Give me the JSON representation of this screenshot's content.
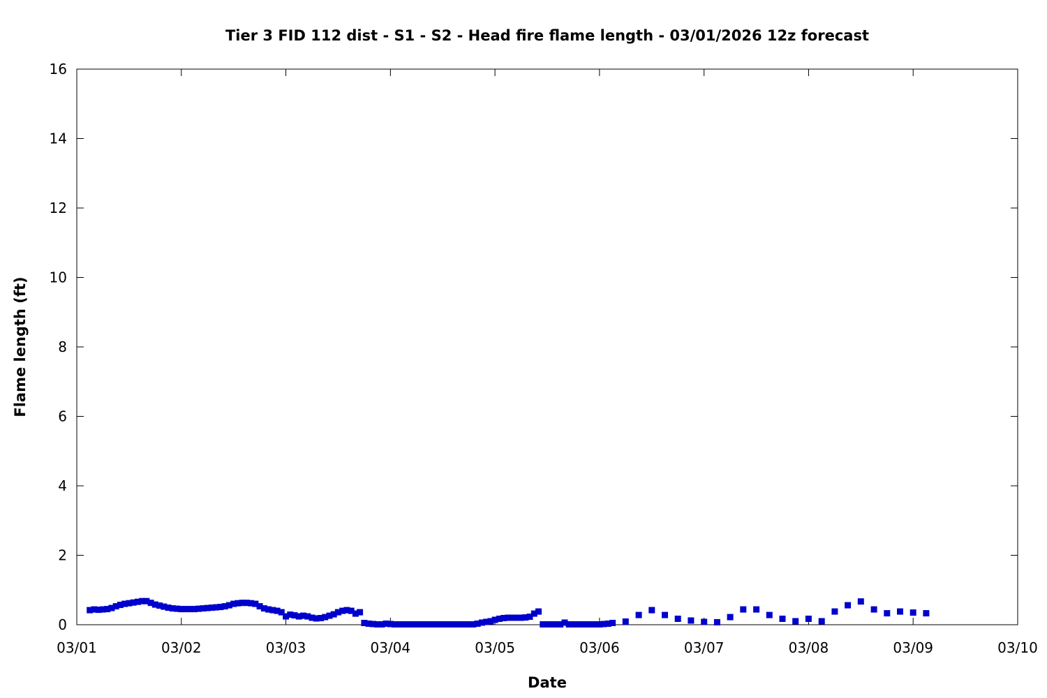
{
  "chart_data": {
    "type": "scatter",
    "title": "Tier 3 FID 112 dist - S1 - S2 - Head fire flame length - 03/01/2026 12z forecast",
    "xlabel": "Date",
    "ylabel": "Flame length (ft)",
    "xlim": [
      "2026-03-01T00:00",
      "2026-03-10T00:00"
    ],
    "ylim": [
      0,
      16
    ],
    "x_ticks": [
      "03/01",
      "03/02",
      "03/03",
      "03/04",
      "03/05",
      "03/06",
      "03/07",
      "03/08",
      "03/09",
      "03/10"
    ],
    "y_ticks": [
      "0",
      "2",
      "4",
      "6",
      "8",
      "10",
      "12",
      "14",
      "16"
    ],
    "grid": false,
    "legend": "none",
    "marker": "square",
    "color": "#0000cc",
    "series": [
      {
        "points": [
          [
            "2026-03-01T03:00",
            0.42
          ],
          [
            "2026-03-01T04:00",
            0.44
          ],
          [
            "2026-03-01T05:00",
            0.43
          ],
          [
            "2026-03-01T06:00",
            0.44
          ],
          [
            "2026-03-01T07:00",
            0.45
          ],
          [
            "2026-03-01T08:00",
            0.48
          ],
          [
            "2026-03-01T09:00",
            0.53
          ],
          [
            "2026-03-01T10:00",
            0.57
          ],
          [
            "2026-03-01T11:00",
            0.6
          ],
          [
            "2026-03-01T12:00",
            0.62
          ],
          [
            "2026-03-01T13:00",
            0.64
          ],
          [
            "2026-03-01T14:00",
            0.66
          ],
          [
            "2026-03-01T15:00",
            0.68
          ],
          [
            "2026-03-01T16:00",
            0.68
          ],
          [
            "2026-03-01T17:00",
            0.63
          ],
          [
            "2026-03-01T18:00",
            0.58
          ],
          [
            "2026-03-01T19:00",
            0.55
          ],
          [
            "2026-03-01T20:00",
            0.52
          ],
          [
            "2026-03-01T21:00",
            0.49
          ],
          [
            "2026-03-01T22:00",
            0.47
          ],
          [
            "2026-03-01T23:00",
            0.46
          ],
          [
            "2026-03-02T00:00",
            0.45
          ],
          [
            "2026-03-02T01:00",
            0.45
          ],
          [
            "2026-03-02T02:00",
            0.45
          ],
          [
            "2026-03-02T03:00",
            0.45
          ],
          [
            "2026-03-02T04:00",
            0.46
          ],
          [
            "2026-03-02T05:00",
            0.47
          ],
          [
            "2026-03-02T06:00",
            0.48
          ],
          [
            "2026-03-02T07:00",
            0.49
          ],
          [
            "2026-03-02T08:00",
            0.5
          ],
          [
            "2026-03-02T09:00",
            0.51
          ],
          [
            "2026-03-02T10:00",
            0.53
          ],
          [
            "2026-03-02T11:00",
            0.56
          ],
          [
            "2026-03-02T12:00",
            0.6
          ],
          [
            "2026-03-02T13:00",
            0.62
          ],
          [
            "2026-03-02T14:00",
            0.63
          ],
          [
            "2026-03-02T15:00",
            0.63
          ],
          [
            "2026-03-02T16:00",
            0.62
          ],
          [
            "2026-03-02T17:00",
            0.6
          ],
          [
            "2026-03-02T18:00",
            0.53
          ],
          [
            "2026-03-02T19:00",
            0.47
          ],
          [
            "2026-03-02T20:00",
            0.44
          ],
          [
            "2026-03-02T21:00",
            0.42
          ],
          [
            "2026-03-02T22:00",
            0.4
          ],
          [
            "2026-03-02T23:00",
            0.36
          ],
          [
            "2026-03-03T00:00",
            0.24
          ],
          [
            "2026-03-03T01:00",
            0.29
          ],
          [
            "2026-03-03T02:00",
            0.27
          ],
          [
            "2026-03-03T03:00",
            0.24
          ],
          [
            "2026-03-03T04:00",
            0.26
          ],
          [
            "2026-03-03T05:00",
            0.24
          ],
          [
            "2026-03-03T06:00",
            0.2
          ],
          [
            "2026-03-03T07:00",
            0.18
          ],
          [
            "2026-03-03T08:00",
            0.19
          ],
          [
            "2026-03-03T09:00",
            0.22
          ],
          [
            "2026-03-03T10:00",
            0.26
          ],
          [
            "2026-03-03T11:00",
            0.3
          ],
          [
            "2026-03-03T12:00",
            0.36
          ],
          [
            "2026-03-03T13:00",
            0.4
          ],
          [
            "2026-03-03T14:00",
            0.42
          ],
          [
            "2026-03-03T15:00",
            0.4
          ],
          [
            "2026-03-03T16:00",
            0.32
          ],
          [
            "2026-03-03T17:00",
            0.36
          ],
          [
            "2026-03-03T18:00",
            0.05
          ],
          [
            "2026-03-03T19:00",
            0.03
          ],
          [
            "2026-03-03T20:00",
            0.02
          ],
          [
            "2026-03-03T21:00",
            0.01
          ],
          [
            "2026-03-03T22:00",
            0.01
          ],
          [
            "2026-03-03T23:00",
            0.03
          ],
          [
            "2026-03-04T00:00",
            0.02
          ],
          [
            "2026-03-04T01:00",
            0.01
          ],
          [
            "2026-03-04T02:00",
            0.01
          ],
          [
            "2026-03-04T03:00",
            0.01
          ],
          [
            "2026-03-04T04:00",
            0.01
          ],
          [
            "2026-03-04T05:00",
            0.01
          ],
          [
            "2026-03-04T06:00",
            0.01
          ],
          [
            "2026-03-04T07:00",
            0.01
          ],
          [
            "2026-03-04T08:00",
            0.01
          ],
          [
            "2026-03-04T09:00",
            0.01
          ],
          [
            "2026-03-04T10:00",
            0.01
          ],
          [
            "2026-03-04T11:00",
            0.01
          ],
          [
            "2026-03-04T12:00",
            0.01
          ],
          [
            "2026-03-04T13:00",
            0.01
          ],
          [
            "2026-03-04T14:00",
            0.01
          ],
          [
            "2026-03-04T15:00",
            0.01
          ],
          [
            "2026-03-04T16:00",
            0.01
          ],
          [
            "2026-03-04T17:00",
            0.01
          ],
          [
            "2026-03-04T18:00",
            0.01
          ],
          [
            "2026-03-04T19:00",
            0.01
          ],
          [
            "2026-03-04T20:00",
            0.03
          ],
          [
            "2026-03-04T21:00",
            0.06
          ],
          [
            "2026-03-04T22:00",
            0.08
          ],
          [
            "2026-03-04T23:00",
            0.1
          ],
          [
            "2026-03-05T00:00",
            0.14
          ],
          [
            "2026-03-05T01:00",
            0.17
          ],
          [
            "2026-03-05T02:00",
            0.19
          ],
          [
            "2026-03-05T03:00",
            0.2
          ],
          [
            "2026-03-05T04:00",
            0.2
          ],
          [
            "2026-03-05T05:00",
            0.2
          ],
          [
            "2026-03-05T06:00",
            0.2
          ],
          [
            "2026-03-05T07:00",
            0.21
          ],
          [
            "2026-03-05T08:00",
            0.23
          ],
          [
            "2026-03-05T09:00",
            0.32
          ],
          [
            "2026-03-05T10:00",
            0.38
          ],
          [
            "2026-03-05T11:00",
            0.01
          ],
          [
            "2026-03-05T12:00",
            0.01
          ],
          [
            "2026-03-05T13:00",
            0.01
          ],
          [
            "2026-03-05T14:00",
            0.01
          ],
          [
            "2026-03-05T15:00",
            0.01
          ],
          [
            "2026-03-05T16:00",
            0.06
          ],
          [
            "2026-03-05T17:00",
            0.01
          ],
          [
            "2026-03-05T18:00",
            0.01
          ],
          [
            "2026-03-05T19:00",
            0.01
          ],
          [
            "2026-03-05T20:00",
            0.01
          ],
          [
            "2026-03-05T21:00",
            0.01
          ],
          [
            "2026-03-05T22:00",
            0.01
          ],
          [
            "2026-03-05T23:00",
            0.01
          ],
          [
            "2026-03-06T00:00",
            0.01
          ],
          [
            "2026-03-06T01:00",
            0.02
          ],
          [
            "2026-03-06T02:00",
            0.03
          ],
          [
            "2026-03-06T03:00",
            0.05
          ],
          [
            "2026-03-06T06:00",
            0.09
          ],
          [
            "2026-03-06T09:00",
            0.28
          ],
          [
            "2026-03-06T12:00",
            0.42
          ],
          [
            "2026-03-06T15:00",
            0.28
          ],
          [
            "2026-03-06T18:00",
            0.17
          ],
          [
            "2026-03-06T21:00",
            0.12
          ],
          [
            "2026-03-07T00:00",
            0.08
          ],
          [
            "2026-03-07T03:00",
            0.07
          ],
          [
            "2026-03-07T06:00",
            0.22
          ],
          [
            "2026-03-07T09:00",
            0.44
          ],
          [
            "2026-03-07T12:00",
            0.44
          ],
          [
            "2026-03-07T15:00",
            0.28
          ],
          [
            "2026-03-07T18:00",
            0.17
          ],
          [
            "2026-03-07T21:00",
            0.1
          ],
          [
            "2026-03-08T00:00",
            0.17
          ],
          [
            "2026-03-08T03:00",
            0.1
          ],
          [
            "2026-03-08T06:00",
            0.38
          ],
          [
            "2026-03-08T09:00",
            0.56
          ],
          [
            "2026-03-08T12:00",
            0.67
          ],
          [
            "2026-03-08T15:00",
            0.44
          ],
          [
            "2026-03-08T18:00",
            0.33
          ],
          [
            "2026-03-08T21:00",
            0.38
          ],
          [
            "2026-03-09T00:00",
            0.35
          ],
          [
            "2026-03-09T03:00",
            0.33
          ]
        ]
      }
    ]
  }
}
